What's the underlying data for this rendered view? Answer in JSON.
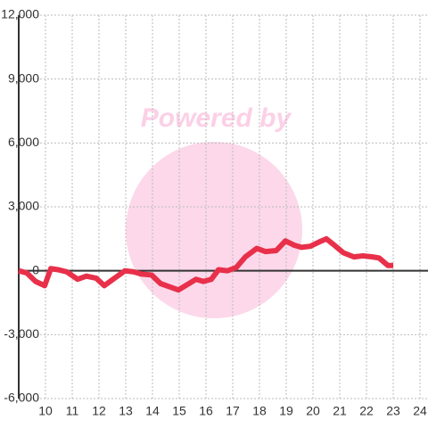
{
  "chart_data": {
    "type": "line",
    "watermark": "Powered by",
    "x": [
      9.0,
      9.3,
      9.63,
      9.97,
      10.2,
      10.47,
      10.8,
      11.2,
      11.53,
      11.9,
      12.2,
      12.47,
      12.97,
      13.3,
      13.57,
      13.97,
      14.3,
      14.63,
      14.97,
      15.3,
      15.63,
      15.9,
      16.2,
      16.47,
      16.8,
      17.13,
      17.47,
      17.9,
      18.23,
      18.63,
      18.97,
      19.3,
      19.57,
      19.9,
      20.23,
      20.5,
      20.8,
      21.13,
      21.53,
      21.87,
      22.23,
      22.47,
      22.8,
      23.0
    ],
    "series": [
      {
        "color": "#e8304a",
        "values": [
          0,
          -100,
          -500,
          -700,
          100,
          50,
          -50,
          -400,
          -250,
          -350,
          -700,
          -450,
          0,
          -50,
          -150,
          -200,
          -600,
          -750,
          -900,
          -650,
          -400,
          -500,
          -400,
          50,
          0,
          150,
          650,
          1050,
          900,
          950,
          1400,
          1200,
          1100,
          1150,
          1350,
          1500,
          1200,
          850,
          650,
          700,
          650,
          600,
          250,
          250
        ]
      }
    ],
    "xlim": [
      9,
      24.3
    ],
    "xticks": [
      10,
      11,
      12,
      13,
      14,
      15,
      16,
      17,
      18,
      19,
      20,
      21,
      22,
      23,
      24
    ],
    "ylim": [
      -6000,
      12000
    ],
    "yticks": [
      {
        "value": -6000,
        "label": "-6,000"
      },
      {
        "value": -3000,
        "label": "-3,000"
      },
      0,
      {
        "value": 3000,
        "label": "3,000"
      },
      {
        "value": 6000,
        "label": "6,000"
      },
      {
        "value": 9000,
        "label": "9,000"
      },
      {
        "value": 12000,
        "label": "12,000"
      }
    ],
    "grid": true
  }
}
